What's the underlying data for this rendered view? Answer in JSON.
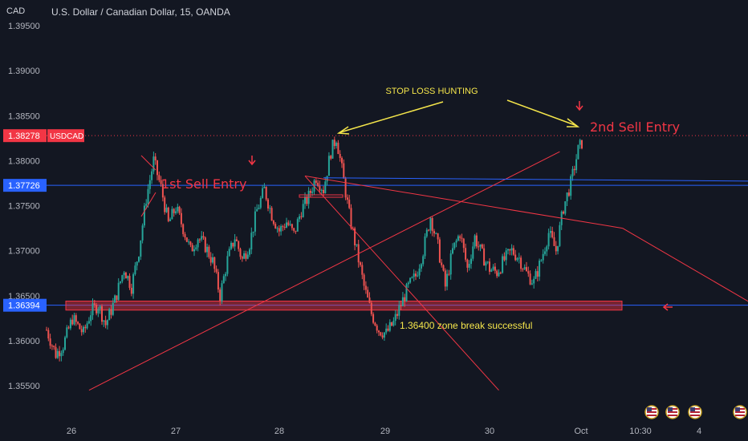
{
  "header": {
    "currency": "CAD",
    "title": "U.S. Dollar / Canadian Dollar, 15, OANDA"
  },
  "colors": {
    "background": "#131722",
    "up": "#26a69a",
    "down": "#ef5350",
    "blue_line": "#2962ff",
    "red_line": "#f23645",
    "yellow_text": "#f5e64b",
    "axis_text": "#b2b5be"
  },
  "chart_data": {
    "type": "candlestick",
    "symbol_tag": "USDCAD",
    "ylim": [
      1.3545,
      1.3965
    ],
    "y_ticks": [
      "1.39500",
      "1.39000",
      "1.38500",
      "1.38000",
      "1.37500",
      "1.37000",
      "1.36500",
      "1.36000",
      "1.35500"
    ],
    "y_tick_values": [
      1.395,
      1.39,
      1.385,
      1.38,
      1.375,
      1.37,
      1.365,
      1.36,
      1.355
    ],
    "x_ticks": [
      "26",
      "27",
      "28",
      "29",
      "30",
      "Oct",
      "10:30",
      "4"
    ],
    "price_badges": [
      {
        "label": "1.38278",
        "value": 1.38278,
        "color": "#f23645"
      },
      {
        "label": "1.37726",
        "value": 1.37726,
        "color": "#2962ff"
      },
      {
        "label": "1.36394",
        "value": 1.36394,
        "color": "#2962ff"
      }
    ],
    "horizontal_lines": [
      {
        "value": 1.38278,
        "style": "dotted",
        "color": "#f23645"
      },
      {
        "value": 1.37726,
        "style": "solid",
        "color": "#2962ff"
      },
      {
        "value": 1.36394,
        "style": "solid",
        "color": "#2962ff"
      }
    ],
    "zone": {
      "from": 1.3634,
      "to": 1.3644
    },
    "path": [
      [
        0,
        1.3612
      ],
      [
        5,
        1.3585
      ],
      [
        9,
        1.3595
      ],
      [
        14,
        1.3625
      ],
      [
        20,
        1.3608
      ],
      [
        24,
        1.3632
      ],
      [
        28,
        1.364
      ],
      [
        32,
        1.3618
      ],
      [
        37,
        1.3645
      ],
      [
        42,
        1.368
      ],
      [
        46,
        1.366
      ],
      [
        50,
        1.37
      ],
      [
        54,
        1.3758
      ],
      [
        58,
        1.38
      ],
      [
        62,
        1.377
      ],
      [
        66,
        1.373
      ],
      [
        70,
        1.3748
      ],
      [
        74,
        1.3725
      ],
      [
        78,
        1.37
      ],
      [
        82,
        1.3715
      ],
      [
        86,
        1.3705
      ],
      [
        90,
        1.3688
      ],
      [
        94,
        1.365
      ],
      [
        98,
        1.369
      ],
      [
        102,
        1.3715
      ],
      [
        106,
        1.369
      ],
      [
        110,
        1.3708
      ],
      [
        114,
        1.3745
      ],
      [
        118,
        1.3768
      ],
      [
        122,
        1.374
      ],
      [
        126,
        1.3722
      ],
      [
        130,
        1.3732
      ],
      [
        134,
        1.3718
      ],
      [
        138,
        1.3745
      ],
      [
        142,
        1.376
      ],
      [
        146,
        1.3782
      ],
      [
        150,
        1.3768
      ],
      [
        154,
        1.381
      ],
      [
        157,
        1.3826
      ],
      [
        160,
        1.379
      ],
      [
        164,
        1.374
      ],
      [
        168,
        1.37
      ],
      [
        172,
        1.366
      ],
      [
        176,
        1.363
      ],
      [
        180,
        1.3612
      ],
      [
        184,
        1.3608
      ],
      [
        188,
        1.362
      ],
      [
        192,
        1.364
      ],
      [
        196,
        1.366
      ],
      [
        200,
        1.3672
      ],
      [
        204,
        1.37
      ],
      [
        208,
        1.3738
      ],
      [
        212,
        1.3705
      ],
      [
        216,
        1.366
      ],
      [
        220,
        1.37
      ],
      [
        224,
        1.372
      ],
      [
        228,
        1.368
      ],
      [
        232,
        1.3715
      ],
      [
        236,
        1.3695
      ],
      [
        240,
        1.368
      ],
      [
        244,
        1.3676
      ],
      [
        248,
        1.369
      ],
      [
        252,
        1.37
      ],
      [
        256,
        1.3692
      ],
      [
        260,
        1.3675
      ],
      [
        264,
        1.3665
      ],
      [
        268,
        1.369
      ],
      [
        272,
        1.372
      ],
      [
        276,
        1.37
      ],
      [
        280,
        1.3748
      ],
      [
        284,
        1.3775
      ],
      [
        288,
        1.3812
      ],
      [
        292,
        1.3828
      ],
      [
        294,
        1.3818
      ]
    ],
    "trendlines": [
      {
        "from": [
          23,
          1.3545
        ],
        "to": [
          278,
          1.381
        ],
        "color": "#f23645"
      },
      {
        "from": [
          140,
          1.3783
        ],
        "to": [
          312,
          1.3725
        ],
        "color": "#f23645"
      },
      {
        "from": [
          140,
          1.3783
        ],
        "to": [
          245,
          1.3545
        ],
        "color": "#f23645"
      },
      {
        "from": [
          312,
          1.3725
        ],
        "to": [
          400,
          1.362
        ],
        "color": "#f23645"
      },
      {
        "from": [
          150,
          1.3781
        ],
        "to": [
          400,
          1.3777
        ],
        "color": "#2962ff"
      }
    ],
    "annotations": [
      {
        "text": "1st Sell Entry",
        "color": "#f23645"
      },
      {
        "text": "2nd Sell Entry",
        "color": "#f23645"
      },
      {
        "text": "STOP LOSS HUNTING",
        "color": "#f5e64b"
      },
      {
        "text": "1.36400 zone break successful",
        "color": "#f5e64b"
      }
    ]
  }
}
